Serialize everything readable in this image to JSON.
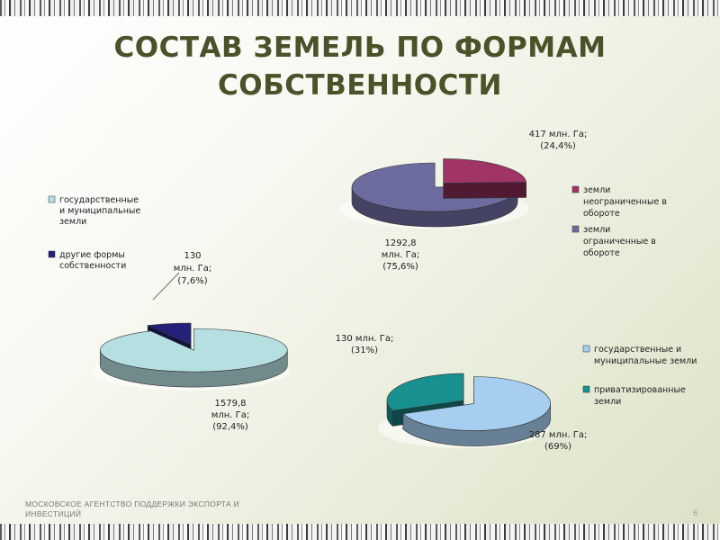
{
  "slide": {
    "title_line1": "СОСТАВ ЗЕМЕЛЬ ПО ФОРМАМ",
    "title_line2": "СОБСТВЕННОСТИ",
    "footer_line1": "МОСКОВСКОЕ АГЕНТСТВО ПОДДЕРЖКИ ЭКСПОРТА И",
    "footer_line2": "ИНВЕСТИЦИЙ",
    "page_number": "6"
  },
  "chart_data": [
    {
      "type": "pie",
      "categories": [
        "земли неограниченные в обороте",
        "земли ограниченные в обороте"
      ],
      "values": [
        417,
        1292.8
      ],
      "data_labels": [
        [
          "417 млн. Га;",
          "(24,4%)"
        ],
        [
          "1292,8",
          "млн. Га;",
          "(75,6%)"
        ]
      ],
      "colors": [
        "#a03464",
        "#6d6c9f"
      ],
      "legend": [
        "земли неограниченные в обороте",
        "земли ограниченные в обороте"
      ],
      "legend_lines": [
        [
          "земли",
          "неограниченные в",
          "обороте"
        ],
        [
          "земли",
          "ограниченные в",
          "обороте"
        ]
      ],
      "legend_position": "right"
    },
    {
      "type": "pie",
      "categories": [
        "государственные и муниципальные земли",
        "другие формы собственности"
      ],
      "values": [
        1579.8,
        130
      ],
      "data_labels": [
        [
          "1579,8",
          "млн. Га;",
          "(92,4%)"
        ],
        [
          "130",
          "млн. Га;",
          "(7,6%)"
        ]
      ],
      "colors": [
        "#b6dfe2",
        "#24217b"
      ],
      "legend": [
        "государственные и муниципальные земли",
        "другие формы собственности"
      ],
      "legend_lines": [
        [
          "государственные",
          "и муниципальные",
          "земли"
        ],
        [
          "другие формы",
          "собственности"
        ]
      ],
      "legend_position": "left"
    },
    {
      "type": "pie",
      "categories": [
        "государственные и муниципальные земли",
        "приватизированные земли"
      ],
      "values": [
        287,
        130
      ],
      "data_labels": [
        [
          "287 млн. Га;",
          "(69%)"
        ],
        [
          "130 млн. Га;",
          "(31%)"
        ]
      ],
      "colors": [
        "#a6cef0",
        "#17908f"
      ],
      "legend": [
        "государственные и муниципальные земли",
        "приватизированные земли"
      ],
      "legend_lines": [
        [
          "государственные и",
          "муниципальные земли"
        ],
        [
          "приватизированные",
          "земли"
        ]
      ],
      "legend_position": "right"
    }
  ]
}
